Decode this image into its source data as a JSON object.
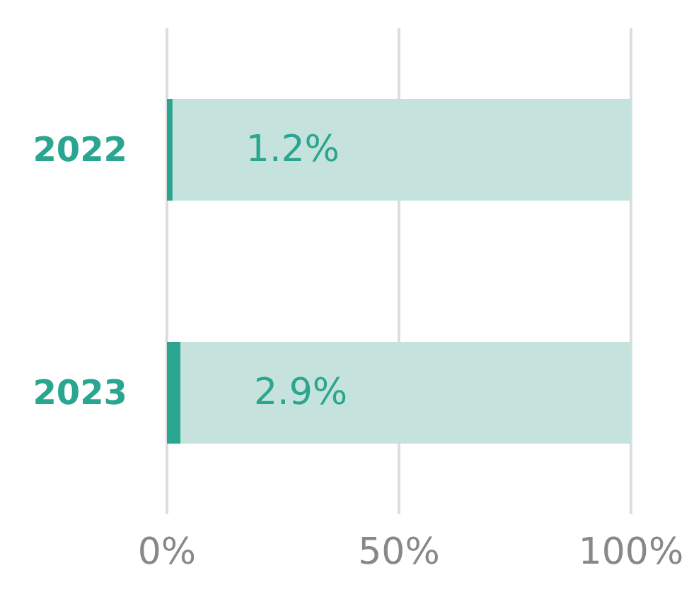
{
  "chart_data": {
    "type": "bar",
    "orientation": "horizontal",
    "stacked": true,
    "categories": [
      "2022",
      "2023"
    ],
    "series": [
      {
        "color": "#2aa58f",
        "values": [
          1.2,
          2.9
        ],
        "value_labels": [
          "1.2%",
          "2.9%"
        ]
      },
      {
        "color": "#c5e3dc",
        "values": [
          98.8,
          97.1
        ]
      }
    ],
    "xlim": [
      0,
      100
    ],
    "xticks": [
      {
        "value": 0,
        "label": "0%"
      },
      {
        "value": 50,
        "label": "50%"
      },
      {
        "value": 100,
        "label": "100%"
      }
    ],
    "grid": "x"
  }
}
